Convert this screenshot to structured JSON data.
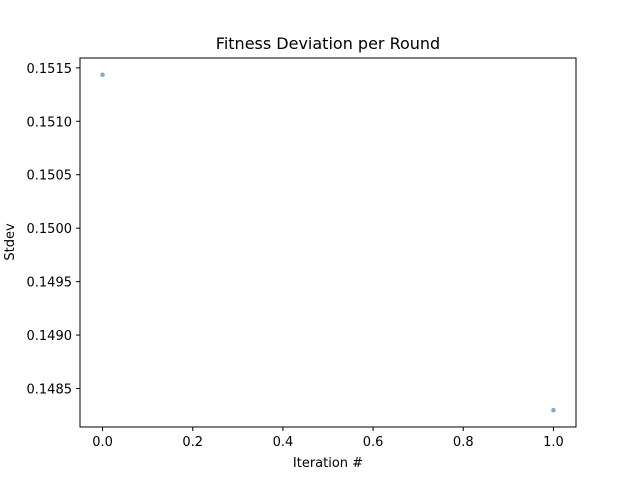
{
  "chart_data": {
    "type": "scatter",
    "title": "Fitness Deviation per Round",
    "xlabel": "Iteration #",
    "ylabel": "Stdev",
    "x": [
      0,
      1
    ],
    "y": [
      0.151435,
      0.148297
    ],
    "xlim": [
      -0.05,
      1.05
    ],
    "ylim": [
      0.14814,
      0.151592
    ],
    "x_ticks": [
      0.0,
      0.2,
      0.4,
      0.6,
      0.8,
      1.0
    ],
    "x_tick_labels": [
      "0.0",
      "0.2",
      "0.4",
      "0.6",
      "0.8",
      "1.0"
    ],
    "y_ticks": [
      0.1485,
      0.149,
      0.1495,
      0.15,
      0.1505,
      0.151,
      0.1515
    ],
    "y_tick_labels": [
      "0.1485",
      "0.1490",
      "0.1495",
      "0.1500",
      "0.1505",
      "0.1510",
      "0.1515"
    ],
    "grid": false,
    "marker_color": "#1f77b4"
  }
}
